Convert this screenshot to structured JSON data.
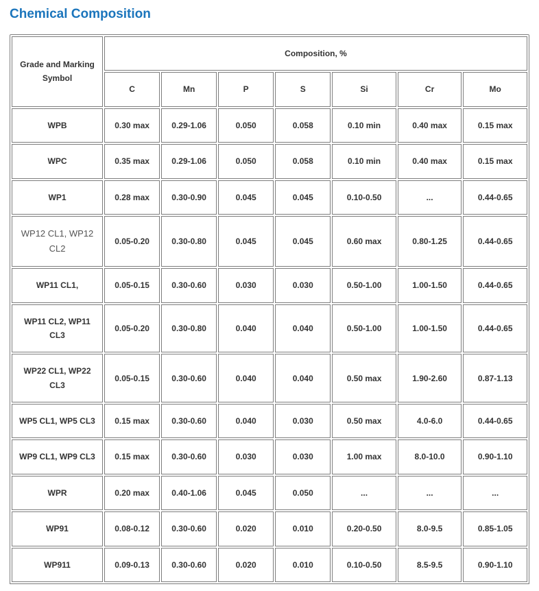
{
  "title": "Chemical Composition",
  "colors": {
    "title": "#1b75bc",
    "border": "#7c7c7c",
    "text": "#333333",
    "muted": "#555555",
    "background": "#ffffff"
  },
  "table": {
    "header_grade": "Grade and Marking Symbol",
    "header_comp": "Composition, %",
    "columns": [
      "C",
      "Mn",
      "P",
      "S",
      "Si",
      "Cr",
      "Mo"
    ],
    "rows": [
      {
        "grade": "WPB",
        "grade_bold": true,
        "cells": [
          "0.30 max",
          "0.29-1.06",
          "0.050",
          "0.058",
          "0.10 min",
          "0.40 max",
          "0.15 max"
        ]
      },
      {
        "grade": "WPC",
        "grade_bold": true,
        "cells": [
          "0.35 max",
          "0.29-1.06",
          "0.050",
          "0.058",
          "0.10 min",
          "0.40 max",
          "0.15 max"
        ]
      },
      {
        "grade": "WP1",
        "grade_bold": true,
        "cells": [
          "0.28 max",
          "0.30-0.90",
          "0.045",
          "0.045",
          "0.10-0.50",
          "...",
          "0.44-0.65"
        ]
      },
      {
        "grade": "WP12 CL1, WP12 CL2",
        "grade_bold": false,
        "cells": [
          "0.05-0.20",
          "0.30-0.80",
          "0.045",
          "0.045",
          "0.60 max",
          "0.80-1.25",
          "0.44-0.65"
        ]
      },
      {
        "grade": "WP11 CL1,",
        "grade_bold": true,
        "cells": [
          "0.05-0.15",
          "0.30-0.60",
          "0.030",
          "0.030",
          "0.50-1.00",
          "1.00-1.50",
          "0.44-0.65"
        ]
      },
      {
        "grade": "WP11 CL2, WP11 CL3",
        "grade_bold": true,
        "cells": [
          "0.05-0.20",
          "0.30-0.80",
          "0.040",
          "0.040",
          "0.50-1.00",
          "1.00-1.50",
          "0.44-0.65"
        ]
      },
      {
        "grade": "WP22 CL1, WP22 CL3",
        "grade_bold": true,
        "cells": [
          "0.05-0.15",
          "0.30-0.60",
          "0.040",
          "0.040",
          "0.50 max",
          "1.90-2.60",
          "0.87-1.13"
        ]
      },
      {
        "grade": "WP5 CL1, WP5 CL3",
        "grade_bold": true,
        "cells": [
          "0.15 max",
          "0.30-0.60",
          "0.040",
          "0.030",
          "0.50 max",
          "4.0-6.0",
          "0.44-0.65"
        ]
      },
      {
        "grade": "WP9 CL1, WP9 CL3",
        "grade_bold": true,
        "cells": [
          "0.15 max",
          "0.30-0.60",
          "0.030",
          "0.030",
          "1.00 max",
          "8.0-10.0",
          "0.90-1.10"
        ]
      },
      {
        "grade": "WPR",
        "grade_bold": true,
        "cells": [
          "0.20 max",
          "0.40-1.06",
          "0.045",
          "0.050",
          "...",
          "...",
          "..."
        ]
      },
      {
        "grade": "WP91",
        "grade_bold": true,
        "cells": [
          "0.08-0.12",
          "0.30-0.60",
          "0.020",
          "0.010",
          "0.20-0.50",
          "8.0-9.5",
          "0.85-1.05"
        ]
      },
      {
        "grade": "WP911",
        "grade_bold": true,
        "cells": [
          "0.09-0.13",
          "0.30-0.60",
          "0.020",
          "0.010",
          "0.10-0.50",
          "8.5-9.5",
          "0.90-1.10"
        ]
      }
    ]
  }
}
